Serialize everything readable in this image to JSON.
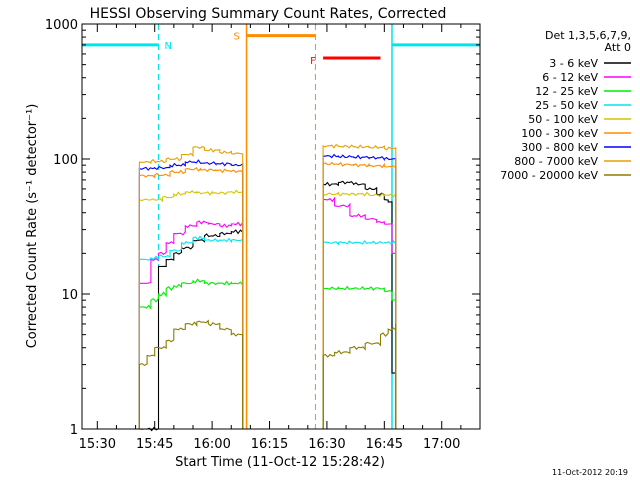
{
  "chart_data": {
    "type": "line",
    "title": "HESSI Observing Summary Count Rates, Corrected",
    "ylabel": "Corrected Count Rate (s⁻¹ detector⁻¹)",
    "xlabel": "Start Time (11-Oct-12 15:28:42)",
    "yscale": "log",
    "ylim": [
      1,
      1000
    ],
    "xlim": [
      "15:26",
      "17:10"
    ],
    "x_ticks": [
      "15:30",
      "15:45",
      "16:00",
      "16:15",
      "16:30",
      "16:45",
      "17:00"
    ],
    "y_ticks": [
      "1",
      "10",
      "100",
      "1000"
    ],
    "timestamp": "11-Oct-2012 20:19",
    "legend": {
      "header_line1": "Det 1,3,5,6,7,9,",
      "header_line2": "Att 0",
      "entries": [
        {
          "label": "3 - 6 keV",
          "color": "#000000"
        },
        {
          "label": "6 - 12 keV",
          "color": "#ff00ff"
        },
        {
          "label": "12 - 25 keV",
          "color": "#00ee00"
        },
        {
          "label": "25 - 50 keV",
          "color": "#00e5ee"
        },
        {
          "label": "50 - 100 keV",
          "color": "#d4c400"
        },
        {
          "label": "100 - 300 keV",
          "color": "#ff8c00"
        },
        {
          "label": "300 - 800 keV",
          "color": "#0000ff"
        },
        {
          "label": "800 - 7000 keV",
          "color": "#e8a000"
        },
        {
          "label": "7000 - 20000 keV",
          "color": "#8b7d00"
        }
      ]
    },
    "intervals": {
      "night": [
        [
          "15:26",
          "15:46"
        ],
        [
          "16:47",
          "17:10"
        ]
      ],
      "saa": [
        "16:09",
        "16:27"
      ],
      "flare": [
        "16:29",
        "16:44"
      ]
    },
    "flag_labels": {
      "night": "N",
      "saa": "S",
      "flare": "F"
    },
    "segments": [
      {
        "start": "15:41",
        "end": "16:08"
      },
      {
        "start": "16:29",
        "end": "16:48"
      }
    ],
    "series": [
      {
        "label": "3 - 6 keV",
        "color": "#000000",
        "seg1": [
          [
            15.41,
            0
          ],
          [
            15.43,
            0
          ],
          [
            15.46,
            16
          ],
          [
            15.48,
            18
          ],
          [
            15.5,
            20
          ],
          [
            15.52,
            22
          ],
          [
            15.55,
            25
          ],
          [
            15.58,
            27
          ],
          [
            16.02,
            28
          ],
          [
            16.05,
            29
          ],
          [
            16.08,
            30
          ]
        ],
        "seg2": [
          [
            16.29,
            65
          ],
          [
            16.33,
            67
          ],
          [
            16.37,
            65
          ],
          [
            16.4,
            60
          ],
          [
            16.43,
            55
          ],
          [
            16.45,
            50
          ],
          [
            16.46,
            48
          ],
          [
            16.47,
            2.6
          ],
          [
            16.48,
            2.6
          ]
        ]
      },
      {
        "label": "6 - 12 keV",
        "color": "#ff00ff",
        "seg1": [
          [
            15.43,
            12
          ],
          [
            15.44,
            18
          ],
          [
            15.46,
            20
          ],
          [
            15.48,
            24
          ],
          [
            15.5,
            28
          ],
          [
            15.53,
            32
          ],
          [
            15.56,
            34
          ],
          [
            15.59,
            33
          ],
          [
            16.02,
            32
          ],
          [
            16.05,
            33
          ],
          [
            16.08,
            34
          ]
        ],
        "seg2": [
          [
            16.29,
            50
          ],
          [
            16.32,
            45
          ],
          [
            16.36,
            38
          ],
          [
            16.4,
            36
          ],
          [
            16.43,
            34
          ],
          [
            16.45,
            33
          ],
          [
            16.47,
            20
          ],
          [
            16.48,
            18
          ]
        ]
      },
      {
        "label": "12 - 25 keV",
        "color": "#00ee00",
        "seg1": [
          [
            15.41,
            8
          ],
          [
            15.44,
            9
          ],
          [
            15.46,
            10
          ],
          [
            15.48,
            11
          ],
          [
            15.5,
            11.5
          ],
          [
            15.52,
            12
          ],
          [
            15.55,
            12.5
          ],
          [
            15.58,
            12
          ],
          [
            16.02,
            12
          ],
          [
            16.05,
            12
          ],
          [
            16.08,
            12
          ]
        ],
        "seg2": [
          [
            16.29,
            11
          ],
          [
            16.33,
            11
          ],
          [
            16.37,
            11
          ],
          [
            16.41,
            11
          ],
          [
            16.45,
            10.5
          ],
          [
            16.47,
            9
          ],
          [
            16.48,
            8
          ]
        ]
      },
      {
        "label": "25 - 50 keV",
        "color": "#00e5ee",
        "seg1": [
          [
            15.41,
            18
          ],
          [
            15.44,
            18.5
          ],
          [
            15.46,
            19
          ],
          [
            15.49,
            21
          ],
          [
            15.52,
            24
          ],
          [
            15.55,
            26
          ],
          [
            15.58,
            25
          ],
          [
            16.02,
            25
          ],
          [
            16.05,
            25
          ],
          [
            16.08,
            25
          ]
        ],
        "seg2": [
          [
            16.29,
            24
          ],
          [
            16.33,
            24
          ],
          [
            16.37,
            24
          ],
          [
            16.41,
            24
          ],
          [
            16.45,
            24
          ],
          [
            16.48,
            24
          ]
        ]
      },
      {
        "label": "50 - 100 keV",
        "color": "#d4c400",
        "seg1": [
          [
            15.41,
            50
          ],
          [
            15.44,
            50
          ],
          [
            15.47,
            52
          ],
          [
            15.5,
            55
          ],
          [
            15.53,
            57
          ],
          [
            15.56,
            56
          ],
          [
            16.0,
            56
          ],
          [
            16.04,
            57
          ],
          [
            16.08,
            58
          ]
        ],
        "seg2": [
          [
            16.29,
            55
          ],
          [
            16.33,
            55
          ],
          [
            16.37,
            55
          ],
          [
            16.41,
            54
          ],
          [
            16.45,
            54
          ],
          [
            16.48,
            54
          ]
        ]
      },
      {
        "label": "100 - 300 keV",
        "color": "#ff8c00",
        "seg1": [
          [
            15.41,
            75
          ],
          [
            15.45,
            76
          ],
          [
            15.49,
            80
          ],
          [
            15.53,
            84
          ],
          [
            15.57,
            83
          ],
          [
            16.01,
            82
          ],
          [
            16.05,
            81
          ],
          [
            16.08,
            80
          ]
        ],
        "seg2": [
          [
            16.29,
            92
          ],
          [
            16.33,
            91
          ],
          [
            16.37,
            90
          ],
          [
            16.41,
            89
          ],
          [
            16.45,
            88
          ],
          [
            16.48,
            88
          ]
        ]
      },
      {
        "label": "300 - 800 keV",
        "color": "#0000ff",
        "seg1": [
          [
            15.41,
            85
          ],
          [
            15.45,
            86
          ],
          [
            15.49,
            90
          ],
          [
            15.53,
            95
          ],
          [
            15.57,
            93
          ],
          [
            16.01,
            92
          ],
          [
            16.05,
            90
          ],
          [
            16.08,
            88
          ]
        ],
        "seg2": [
          [
            16.29,
            105
          ],
          [
            16.33,
            104
          ],
          [
            16.37,
            103
          ],
          [
            16.41,
            102
          ],
          [
            16.45,
            100
          ],
          [
            16.48,
            100
          ]
        ]
      },
      {
        "label": "800 - 7000 keV",
        "color": "#e8a000",
        "seg1": [
          [
            15.41,
            95
          ],
          [
            15.44,
            96
          ],
          [
            15.48,
            100
          ],
          [
            15.52,
            108
          ],
          [
            15.55,
            122
          ],
          [
            15.58,
            116
          ],
          [
            16.02,
            112
          ],
          [
            16.05,
            110
          ],
          [
            16.08,
            108
          ]
        ],
        "seg2": [
          [
            16.29,
            125
          ],
          [
            16.33,
            124
          ],
          [
            16.37,
            123
          ],
          [
            16.41,
            122
          ],
          [
            16.45,
            120
          ],
          [
            16.48,
            118
          ]
        ]
      },
      {
        "label": "7000 - 20000 keV",
        "color": "#8b7d00",
        "seg1": [
          [
            15.41,
            3
          ],
          [
            15.43,
            3.5
          ],
          [
            15.45,
            4
          ],
          [
            15.48,
            4.5
          ],
          [
            15.5,
            5.5
          ],
          [
            15.53,
            6
          ],
          [
            15.56,
            6.2
          ],
          [
            15.59,
            6
          ],
          [
            16.02,
            5.5
          ],
          [
            16.05,
            5
          ],
          [
            16.08,
            4.5
          ]
        ],
        "seg2": [
          [
            16.29,
            3.5
          ],
          [
            16.32,
            3.7
          ],
          [
            16.36,
            4
          ],
          [
            16.4,
            4.3
          ],
          [
            16.44,
            5
          ],
          [
            16.46,
            5.5
          ],
          [
            16.48,
            6
          ]
        ]
      }
    ]
  }
}
